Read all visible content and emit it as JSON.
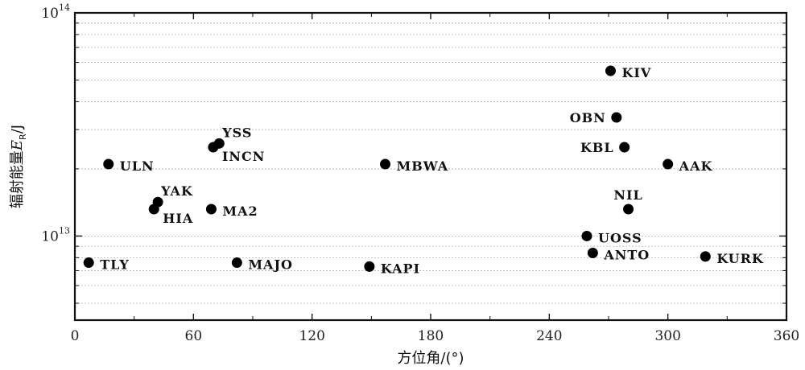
{
  "chart_data": {
    "type": "scatter",
    "xlabel": "方位角/(°)",
    "ylabel_prefix": "辐射能量",
    "ylabel_var": "E",
    "ylabel_sub": "R",
    "ylabel_unit": "/J",
    "xlim": [
      0,
      360
    ],
    "ylim": [
      4200000000000.0,
      100000000000000.0
    ],
    "yscale": "log",
    "xticks": [
      0,
      60,
      120,
      180,
      240,
      300,
      360
    ],
    "yticks": [
      {
        "base": "10",
        "exp": "13",
        "value": 10000000000000.0
      },
      {
        "base": "10",
        "exp": "14",
        "value": 100000000000000.0
      }
    ],
    "grid": true,
    "points": [
      {
        "label": "KIV",
        "x": 271,
        "y": 55000000000000.0,
        "anchor": "right"
      },
      {
        "label": "OBN",
        "x": 274,
        "y": 34000000000000.0,
        "anchor": "left"
      },
      {
        "label": "KBL",
        "x": 278,
        "y": 25000000000000.0,
        "anchor": "left"
      },
      {
        "label": "AAK",
        "x": 300,
        "y": 21000000000000.0,
        "anchor": "right"
      },
      {
        "label": "NIL",
        "x": 280,
        "y": 13200000000000.0,
        "anchor": "above"
      },
      {
        "label": "UOSS",
        "x": 259,
        "y": 10000000000000.0,
        "anchor": "right"
      },
      {
        "label": "ANTO",
        "x": 262,
        "y": 8400000000000.0,
        "anchor": "right"
      },
      {
        "label": "KURK",
        "x": 319,
        "y": 8100000000000.0,
        "anchor": "right"
      },
      {
        "label": "YSS",
        "x": 73,
        "y": 26000000000000.0,
        "anchor": "aboveright"
      },
      {
        "label": "INCN",
        "x": 70,
        "y": 25000000000000.0,
        "anchor": "belowright"
      },
      {
        "label": "ULN",
        "x": 17,
        "y": 21000000000000.0,
        "anchor": "right"
      },
      {
        "label": "MBWA",
        "x": 157,
        "y": 21000000000000.0,
        "anchor": "right"
      },
      {
        "label": "YAK",
        "x": 42,
        "y": 14200000000000.0,
        "anchor": "aboveright"
      },
      {
        "label": "HIA",
        "x": 40,
        "y": 13200000000000.0,
        "anchor": "belowright"
      },
      {
        "label": "MA2",
        "x": 69,
        "y": 13200000000000.0,
        "anchor": "right"
      },
      {
        "label": "TLY",
        "x": 7,
        "y": 7600000000000.0,
        "anchor": "right"
      },
      {
        "label": "MAJO",
        "x": 82,
        "y": 7600000000000.0,
        "anchor": "right"
      },
      {
        "label": "KAPI",
        "x": 149,
        "y": 7300000000000.0,
        "anchor": "right"
      }
    ]
  }
}
